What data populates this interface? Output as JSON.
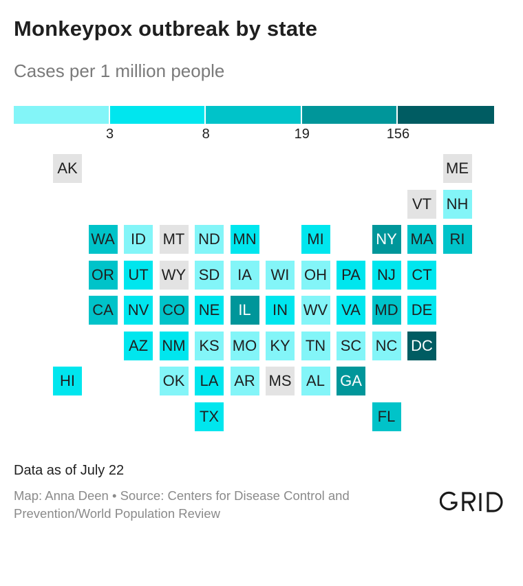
{
  "title": "Monkeypox outbreak by state",
  "subtitle": "Cases per 1 million people",
  "legend": {
    "colors": [
      "#83f5f8",
      "#00e6ee",
      "#00c3c9",
      "#00969a",
      "#005c62"
    ],
    "ticks": [
      "3",
      "8",
      "19",
      "156"
    ]
  },
  "chart_data": {
    "type": "tile-map",
    "title": "Monkeypox outbreak by state",
    "subtitle": "Cases per 1 million people",
    "legend_breaks": [
      3,
      8,
      19,
      156
    ],
    "no_data_color": "#e3e3e3",
    "states": [
      {
        "abbr": "AK",
        "row": 0,
        "col": 1,
        "bin": null
      },
      {
        "abbr": "ME",
        "row": 0,
        "col": 12,
        "bin": null
      },
      {
        "abbr": "VT",
        "row": 1,
        "col": 11,
        "bin": null
      },
      {
        "abbr": "NH",
        "row": 1,
        "col": 12,
        "bin": 0
      },
      {
        "abbr": "WA",
        "row": 2,
        "col": 2,
        "bin": 2
      },
      {
        "abbr": "ID",
        "row": 2,
        "col": 3,
        "bin": 0
      },
      {
        "abbr": "MT",
        "row": 2,
        "col": 4,
        "bin": null
      },
      {
        "abbr": "ND",
        "row": 2,
        "col": 5,
        "bin": 0
      },
      {
        "abbr": "MN",
        "row": 2,
        "col": 6,
        "bin": 1
      },
      {
        "abbr": "MI",
        "row": 2,
        "col": 8,
        "bin": 1
      },
      {
        "abbr": "NY",
        "row": 2,
        "col": 10,
        "bin": 3
      },
      {
        "abbr": "MA",
        "row": 2,
        "col": 11,
        "bin": 2
      },
      {
        "abbr": "RI",
        "row": 2,
        "col": 12,
        "bin": 2
      },
      {
        "abbr": "OR",
        "row": 3,
        "col": 2,
        "bin": 2
      },
      {
        "abbr": "UT",
        "row": 3,
        "col": 3,
        "bin": 1
      },
      {
        "abbr": "WY",
        "row": 3,
        "col": 4,
        "bin": null
      },
      {
        "abbr": "SD",
        "row": 3,
        "col": 5,
        "bin": 0
      },
      {
        "abbr": "IA",
        "row": 3,
        "col": 6,
        "bin": 0
      },
      {
        "abbr": "WI",
        "row": 3,
        "col": 7,
        "bin": 0
      },
      {
        "abbr": "OH",
        "row": 3,
        "col": 8,
        "bin": 0
      },
      {
        "abbr": "PA",
        "row": 3,
        "col": 9,
        "bin": 1
      },
      {
        "abbr": "NJ",
        "row": 3,
        "col": 10,
        "bin": 1
      },
      {
        "abbr": "CT",
        "row": 3,
        "col": 11,
        "bin": 1
      },
      {
        "abbr": "CA",
        "row": 4,
        "col": 2,
        "bin": 2
      },
      {
        "abbr": "NV",
        "row": 4,
        "col": 3,
        "bin": 1
      },
      {
        "abbr": "CO",
        "row": 4,
        "col": 4,
        "bin": 2
      },
      {
        "abbr": "NE",
        "row": 4,
        "col": 5,
        "bin": 1
      },
      {
        "abbr": "IL",
        "row": 4,
        "col": 6,
        "bin": 3
      },
      {
        "abbr": "IN",
        "row": 4,
        "col": 7,
        "bin": 1
      },
      {
        "abbr": "WV",
        "row": 4,
        "col": 8,
        "bin": 0
      },
      {
        "abbr": "VA",
        "row": 4,
        "col": 9,
        "bin": 1
      },
      {
        "abbr": "MD",
        "row": 4,
        "col": 10,
        "bin": 2
      },
      {
        "abbr": "DE",
        "row": 4,
        "col": 11,
        "bin": 1
      },
      {
        "abbr": "AZ",
        "row": 5,
        "col": 3,
        "bin": 1
      },
      {
        "abbr": "NM",
        "row": 5,
        "col": 4,
        "bin": 1
      },
      {
        "abbr": "KS",
        "row": 5,
        "col": 5,
        "bin": 0
      },
      {
        "abbr": "MO",
        "row": 5,
        "col": 6,
        "bin": 0
      },
      {
        "abbr": "KY",
        "row": 5,
        "col": 7,
        "bin": 0
      },
      {
        "abbr": "TN",
        "row": 5,
        "col": 8,
        "bin": 0
      },
      {
        "abbr": "SC",
        "row": 5,
        "col": 9,
        "bin": 0
      },
      {
        "abbr": "NC",
        "row": 5,
        "col": 10,
        "bin": 0
      },
      {
        "abbr": "DC",
        "row": 5,
        "col": 11,
        "bin": 4
      },
      {
        "abbr": "HI",
        "row": 6,
        "col": 1,
        "bin": 1
      },
      {
        "abbr": "OK",
        "row": 6,
        "col": 4,
        "bin": 0
      },
      {
        "abbr": "LA",
        "row": 6,
        "col": 5,
        "bin": 1
      },
      {
        "abbr": "AR",
        "row": 6,
        "col": 6,
        "bin": 0
      },
      {
        "abbr": "MS",
        "row": 6,
        "col": 7,
        "bin": null
      },
      {
        "abbr": "AL",
        "row": 6,
        "col": 8,
        "bin": 0
      },
      {
        "abbr": "GA",
        "row": 6,
        "col": 9,
        "bin": 3
      },
      {
        "abbr": "TX",
        "row": 7,
        "col": 5,
        "bin": 1
      },
      {
        "abbr": "FL",
        "row": 7,
        "col": 10,
        "bin": 2
      }
    ]
  },
  "footer": {
    "note": "Data as of July 22",
    "credit": "Map: Anna Deen • Source: Centers for Disease Control and Prevention/World Population Review",
    "logo": "GRID"
  }
}
